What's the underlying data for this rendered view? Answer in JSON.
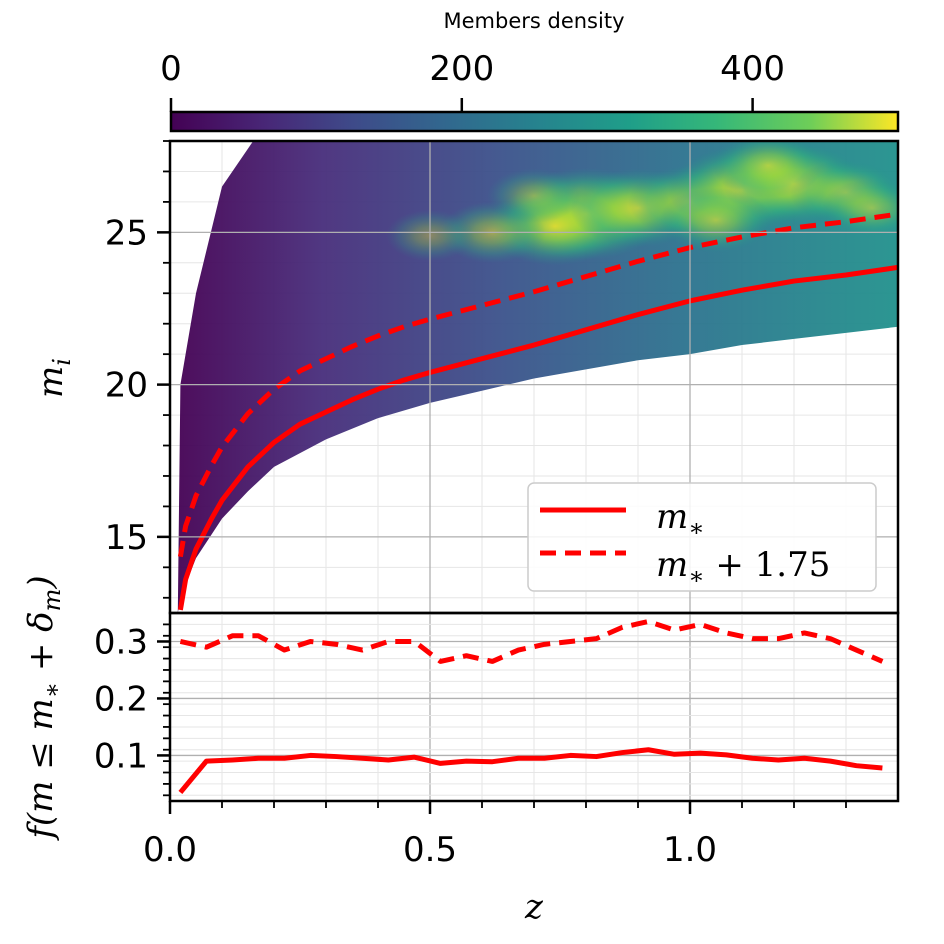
{
  "colorbar": {
    "title": "Members density",
    "ticks": [
      0,
      200,
      400
    ],
    "range": [
      0,
      500
    ],
    "colormap": "viridis"
  },
  "chart_data": [
    {
      "type": "scatter",
      "panel": "top",
      "ylabel": "m_i",
      "xlim": [
        0,
        1.4
      ],
      "ylim": [
        12.5,
        28
      ],
      "yticks": [
        15,
        20,
        25
      ],
      "grid": true,
      "legend_position": "lower-right",
      "density_cloud": {
        "description_in_data_units": "members plotted in z vs m_i, colored by density",
        "upper_bound": 28,
        "lower_envelope": {
          "x": [
            0.02,
            0.05,
            0.1,
            0.15,
            0.2,
            0.3,
            0.4,
            0.5,
            0.6,
            0.7,
            0.8,
            0.9,
            1.0,
            1.1,
            1.2,
            1.3,
            1.4
          ],
          "y": [
            13.0,
            14.3,
            15.6,
            16.5,
            17.3,
            18.2,
            18.9,
            19.4,
            19.8,
            20.2,
            20.5,
            20.8,
            21.0,
            21.3,
            21.5,
            21.7,
            21.9
          ]
        },
        "high_density_region": {
          "x": [
            0.55,
            1.4
          ],
          "y": [
            24.5,
            27.5
          ]
        }
      },
      "series": [
        {
          "name": "m_*",
          "style": "solid",
          "color": "#ff0000",
          "x": [
            0.02,
            0.03,
            0.05,
            0.08,
            0.1,
            0.15,
            0.2,
            0.25,
            0.3,
            0.35,
            0.4,
            0.45,
            0.5,
            0.6,
            0.7,
            0.8,
            0.9,
            1.0,
            1.1,
            1.2,
            1.3,
            1.4
          ],
          "y": [
            12.6,
            13.6,
            14.6,
            15.6,
            16.2,
            17.3,
            18.1,
            18.7,
            19.1,
            19.5,
            19.85,
            20.15,
            20.4,
            20.85,
            21.3,
            21.8,
            22.3,
            22.75,
            23.1,
            23.4,
            23.6,
            23.85
          ]
        },
        {
          "name": "m_* + 1.75",
          "style": "dashed",
          "color": "#ff0000",
          "x": [
            0.02,
            0.03,
            0.05,
            0.08,
            0.1,
            0.15,
            0.2,
            0.25,
            0.3,
            0.35,
            0.4,
            0.45,
            0.5,
            0.6,
            0.7,
            0.8,
            0.9,
            1.0,
            1.1,
            1.2,
            1.3,
            1.4
          ],
          "y": [
            14.35,
            15.35,
            16.35,
            17.35,
            17.95,
            19.05,
            19.85,
            20.45,
            20.85,
            21.25,
            21.6,
            21.9,
            22.15,
            22.6,
            23.05,
            23.55,
            24.05,
            24.5,
            24.85,
            25.15,
            25.35,
            25.6
          ]
        }
      ],
      "legend": [
        "m_*",
        "m_* + 1.75"
      ]
    },
    {
      "type": "line",
      "panel": "bottom",
      "xlabel": "z",
      "ylabel": "f(m ≤ m_* + δ_m)",
      "xlim": [
        0,
        1.4
      ],
      "ylim": [
        0.02,
        0.35
      ],
      "xticks": [
        0.0,
        0.5,
        1.0
      ],
      "yticks": [
        0.1,
        0.2,
        0.3
      ],
      "grid": true,
      "series": [
        {
          "name": "dashed",
          "style": "dashed",
          "color": "#ff0000",
          "x": [
            0.02,
            0.07,
            0.12,
            0.17,
            0.22,
            0.27,
            0.32,
            0.37,
            0.42,
            0.47,
            0.52,
            0.57,
            0.62,
            0.67,
            0.72,
            0.77,
            0.82,
            0.87,
            0.92,
            0.97,
            1.02,
            1.07,
            1.12,
            1.17,
            1.22,
            1.27,
            1.32,
            1.37
          ],
          "y": [
            0.3,
            0.29,
            0.31,
            0.31,
            0.285,
            0.3,
            0.295,
            0.285,
            0.3,
            0.3,
            0.265,
            0.275,
            0.265,
            0.285,
            0.295,
            0.3,
            0.305,
            0.325,
            0.335,
            0.32,
            0.33,
            0.315,
            0.305,
            0.305,
            0.315,
            0.305,
            0.285,
            0.265
          ]
        },
        {
          "name": "solid",
          "style": "solid",
          "color": "#ff0000",
          "x": [
            0.02,
            0.07,
            0.12,
            0.17,
            0.22,
            0.27,
            0.32,
            0.37,
            0.42,
            0.47,
            0.52,
            0.57,
            0.62,
            0.67,
            0.72,
            0.77,
            0.82,
            0.87,
            0.92,
            0.97,
            1.02,
            1.07,
            1.12,
            1.17,
            1.22,
            1.27,
            1.32,
            1.37
          ],
          "y": [
            0.035,
            0.09,
            0.092,
            0.095,
            0.095,
            0.1,
            0.098,
            0.095,
            0.092,
            0.097,
            0.086,
            0.09,
            0.089,
            0.095,
            0.095,
            0.1,
            0.098,
            0.105,
            0.11,
            0.102,
            0.104,
            0.101,
            0.095,
            0.092,
            0.095,
            0.09,
            0.082,
            0.078
          ]
        }
      ]
    }
  ]
}
